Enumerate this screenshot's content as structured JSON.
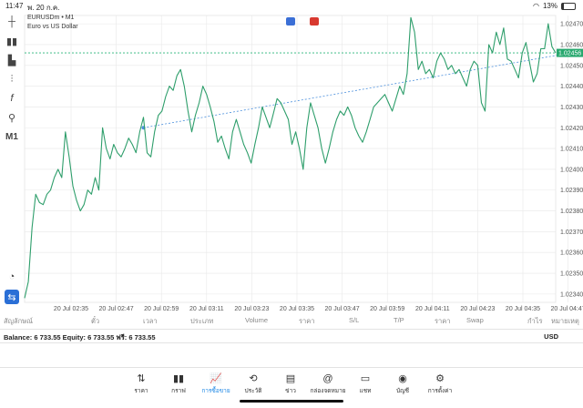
{
  "status_bar": {
    "time": "11:47",
    "date": "พ. 20 ก.ค.",
    "battery": "13%",
    "battery_level": 0.13
  },
  "chart": {
    "symbol": "EURUSDm • M1",
    "description": "Euro vs US Dollar",
    "timeframe": "M1",
    "current_price": "1.02456",
    "colors": {
      "line": "#2e9e6b",
      "grid": "#e8e8e8",
      "price_line": "#2ab57a",
      "trend": "#4a8fdc",
      "price_tag": "#27a86e",
      "marker": "#e53935"
    },
    "y_ticks": [
      "1.02470",
      "1.02460",
      "1.02450",
      "1.02440",
      "1.02430",
      "1.02420",
      "1.02410",
      "1.02400",
      "1.02390",
      "1.02380",
      "1.02370",
      "1.02360",
      "1.02350",
      "1.02340"
    ],
    "x_ticks": [
      "20 Jul 02:35",
      "20 Jul 02:47",
      "20 Jul 02:59",
      "20 Jul 03:11",
      "20 Jul 03:23",
      "20 Jul 03:35",
      "20 Jul 03:47",
      "20 Jul 03:59",
      "20 Jul 04:11",
      "20 Jul 04:23",
      "20 Jul 04:35",
      "20 Jul 04:47"
    ]
  },
  "chart_data": {
    "type": "line",
    "ylim": [
      1.02336,
      1.02474
    ],
    "series": [
      {
        "values": [
          1.02338,
          1.02346,
          1.02372,
          1.02388,
          1.02384,
          1.02383,
          1.02388,
          1.0239,
          1.02396,
          1.024,
          1.02396,
          1.02418,
          1.02406,
          1.02392,
          1.02385,
          1.0238,
          1.02383,
          1.0239,
          1.02388,
          1.02396,
          1.0239,
          1.0242,
          1.0241,
          1.02405,
          1.02412,
          1.02408,
          1.02406,
          1.0241,
          1.02415,
          1.02412,
          1.02408,
          1.02418,
          1.02425,
          1.02408,
          1.02406,
          1.02418,
          1.02426,
          1.02428,
          1.02435,
          1.0244,
          1.02438,
          1.02445,
          1.02448,
          1.0244,
          1.02428,
          1.02418,
          1.02426,
          1.02432,
          1.0244,
          1.02436,
          1.0243,
          1.02423,
          1.02413,
          1.02416,
          1.0241,
          1.02405,
          1.02418,
          1.02424,
          1.02418,
          1.02412,
          1.02408,
          1.02403,
          1.02412,
          1.0242,
          1.0243,
          1.02425,
          1.0242,
          1.02427,
          1.02434,
          1.02432,
          1.02428,
          1.02424,
          1.02412,
          1.02418,
          1.0241,
          1.024,
          1.0242,
          1.02432,
          1.02426,
          1.0242,
          1.0241,
          1.02403,
          1.0241,
          1.02418,
          1.02424,
          1.02428,
          1.02426,
          1.0243,
          1.02426,
          1.0242,
          1.02416,
          1.02413,
          1.02418,
          1.02424,
          1.0243,
          1.02432,
          1.02434,
          1.02436,
          1.02432,
          1.02428,
          1.02434,
          1.0244,
          1.02436,
          1.02446,
          1.02473,
          1.02466,
          1.02448,
          1.02452,
          1.02446,
          1.02448,
          1.02444,
          1.02452,
          1.02456,
          1.02453,
          1.02448,
          1.0245,
          1.02446,
          1.02448,
          1.02444,
          1.0244,
          1.02448,
          1.02452,
          1.0245,
          1.02432,
          1.02428,
          1.0246,
          1.02456,
          1.02466,
          1.0246,
          1.02468,
          1.02453,
          1.02452,
          1.02448,
          1.02444,
          1.02456,
          1.02461,
          1.02451,
          1.02442,
          1.02446,
          1.02458,
          1.02458,
          1.0247,
          1.02459,
          1.02456
        ]
      }
    ],
    "trend_line": {
      "from": [
        32,
        1.0242
      ],
      "to": [
        147,
        1.02456
      ]
    }
  },
  "columns": {
    "symbol": "สัญลักษณ์",
    "ticket": "ตั๋ว",
    "time": "เวลา",
    "type": "ประเภท",
    "volume": "Volume",
    "price": "ราคา",
    "sl": "S/L",
    "tp": "T/P",
    "price2": "ราคา",
    "swap": "Swap",
    "profit": "กำไร",
    "comment": "หมายเหตุ"
  },
  "account": {
    "summary": "Balance: 6 733.55 Equity: 6 733.55 ฟรี: 6 733.55",
    "currency": "USD"
  },
  "nav": [
    {
      "label": "ราคา",
      "icon": "quotes-icon"
    },
    {
      "label": "กราฟ",
      "icon": "chart-icon"
    },
    {
      "label": "การซื้อขาย",
      "icon": "trade-icon"
    },
    {
      "label": "ประวัติ",
      "icon": "history-icon"
    },
    {
      "label": "ข่าว",
      "icon": "news-icon"
    },
    {
      "label": "กล่องจดหมาย",
      "icon": "mailbox-icon"
    },
    {
      "label": "แชท",
      "icon": "chat-icon"
    },
    {
      "label": "บัญชี",
      "icon": "account-icon"
    },
    {
      "label": "การตั้งค่า",
      "icon": "settings-icon"
    }
  ],
  "active_tab": 2
}
